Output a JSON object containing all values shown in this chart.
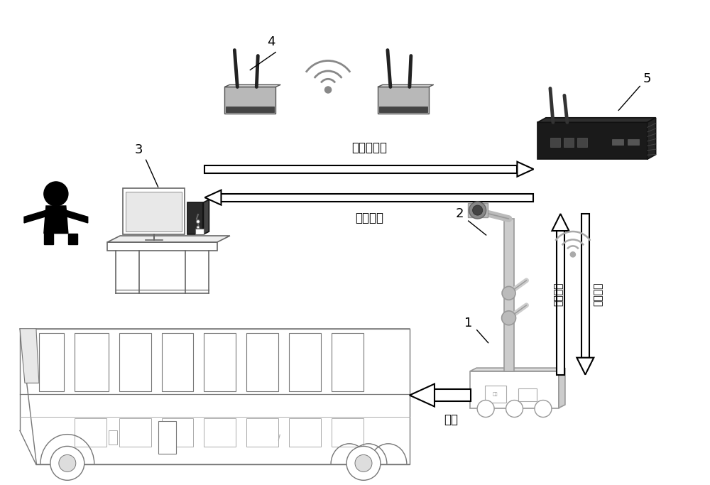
{
  "bg_color": "#ffffff",
  "label_1": "1",
  "label_2": "2",
  "label_3": "3",
  "label_4": "4",
  "label_5": "5",
  "text_remote_cmd": "遥操作指令",
  "text_workshop_data": "车间数据",
  "text_grind": "打磨",
  "text_workshop_data_vert": "车间数据",
  "text_remote_cmd_vert": "遥操指令",
  "figsize": [
    10.0,
    6.83
  ],
  "dpi": 100,
  "lc": "#555555",
  "pc": "#333333"
}
